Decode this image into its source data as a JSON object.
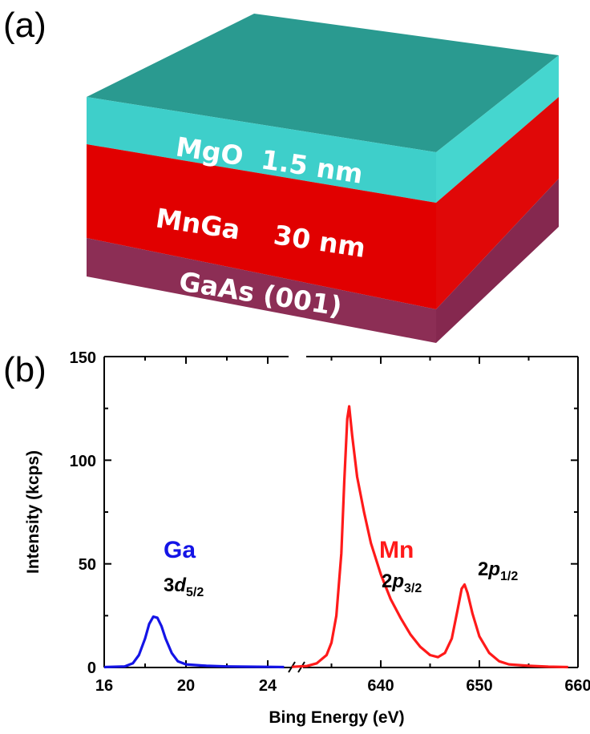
{
  "panel_a": {
    "label": "(a)",
    "layers": [
      {
        "label": "MgO  1.5 nm",
        "color": "#3ecfca"
      },
      {
        "label_material": "MnGa",
        "label_thickness": "30 nm",
        "color": "#e10000"
      },
      {
        "label": "GaAs (001)",
        "color": "#8c2e55"
      }
    ],
    "top_face_color": "#2a9a90"
  },
  "panel_b": {
    "label": "(b)"
  },
  "chart_data": {
    "type": "line",
    "xlabel": "Bing Energy (eV)",
    "ylabel": "Intensity (kcps)",
    "ylim": [
      0,
      150
    ],
    "y_ticks": [
      0,
      50,
      100,
      150
    ],
    "x_axis_broken": true,
    "x_segments": [
      {
        "range": [
          16,
          25
        ],
        "tick_labels": [
          "16",
          "20",
          "24"
        ]
      },
      {
        "range": [
          630,
          660
        ],
        "tick_labels": [
          "640",
          "650",
          "660"
        ]
      }
    ],
    "series": [
      {
        "element": "Ga",
        "orbital_main": "3",
        "orbital_italic": "d",
        "orbital_sub": "5/2",
        "color": "#1414e6",
        "points": [
          [
            16.0,
            0.2
          ],
          [
            17.0,
            0.5
          ],
          [
            17.4,
            2
          ],
          [
            17.7,
            6
          ],
          [
            18.0,
            14
          ],
          [
            18.2,
            21
          ],
          [
            18.4,
            24.5
          ],
          [
            18.6,
            24
          ],
          [
            18.8,
            20
          ],
          [
            19.0,
            14
          ],
          [
            19.3,
            7
          ],
          [
            19.6,
            3
          ],
          [
            20.0,
            1.5
          ],
          [
            21.0,
            0.8
          ],
          [
            22.0,
            0.5
          ],
          [
            23.0,
            0.4
          ],
          [
            24.0,
            0.3
          ],
          [
            24.8,
            0.2
          ]
        ]
      },
      {
        "element": "Mn",
        "peaks": [
          {
            "orbital_main": "2",
            "orbital_italic": "p",
            "orbital_sub": "3/2"
          },
          {
            "orbital_main": "2",
            "orbital_italic": "p",
            "orbital_sub": "1/2"
          }
        ],
        "color": "#ff1a1a",
        "points": [
          [
            631.0,
            0.3
          ],
          [
            632.5,
            0.7
          ],
          [
            633.5,
            2
          ],
          [
            634.5,
            6
          ],
          [
            635.0,
            12
          ],
          [
            635.5,
            25
          ],
          [
            636.0,
            55
          ],
          [
            636.3,
            90
          ],
          [
            636.6,
            120
          ],
          [
            636.8,
            126
          ],
          [
            637.1,
            112
          ],
          [
            637.6,
            92
          ],
          [
            638.3,
            75
          ],
          [
            639.0,
            60
          ],
          [
            640.0,
            45
          ],
          [
            641.0,
            33
          ],
          [
            642.0,
            24
          ],
          [
            643.0,
            16
          ],
          [
            644.0,
            10
          ],
          [
            645.0,
            6
          ],
          [
            645.8,
            5
          ],
          [
            646.5,
            7
          ],
          [
            647.2,
            14
          ],
          [
            647.8,
            28
          ],
          [
            648.2,
            38
          ],
          [
            648.5,
            40
          ],
          [
            648.8,
            36
          ],
          [
            649.3,
            26
          ],
          [
            650.0,
            15
          ],
          [
            651.0,
            7
          ],
          [
            652.0,
            3
          ],
          [
            653.0,
            1.5
          ],
          [
            655.0,
            0.8
          ],
          [
            657.0,
            0.4
          ],
          [
            659.0,
            0.2
          ]
        ]
      }
    ]
  }
}
